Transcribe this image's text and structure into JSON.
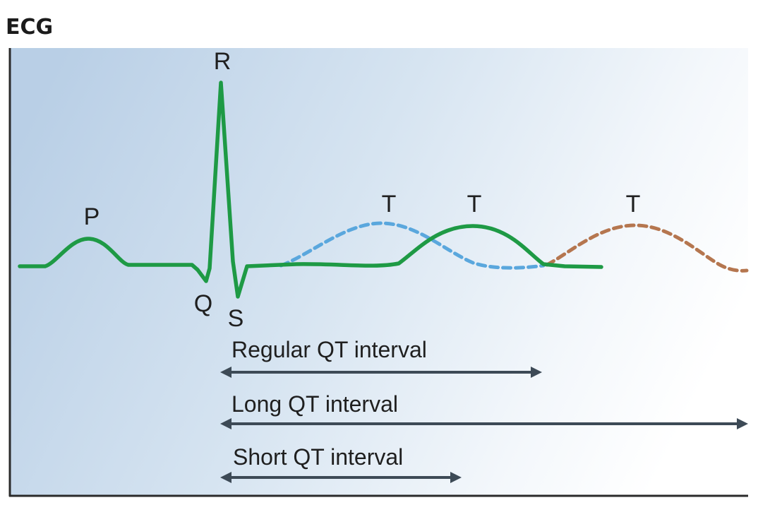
{
  "title": "ECG",
  "wave_labels": {
    "p": "P",
    "q": "Q",
    "r": "R",
    "s": "S",
    "t_short": "T",
    "t_regular": "T",
    "t_long": "T"
  },
  "intervals": {
    "regular": "Regular QT interval",
    "long": "Long QT interval",
    "short": "Short QT interval"
  },
  "colors": {
    "background_left": "#b9cfe6",
    "background_right": "#ffffff",
    "axis": "#2a2a2a",
    "ecg_regular": "#1e9a45",
    "t_short": "#5aa7dd",
    "t_long": "#b5764f",
    "arrow": "#3d4a56"
  }
}
